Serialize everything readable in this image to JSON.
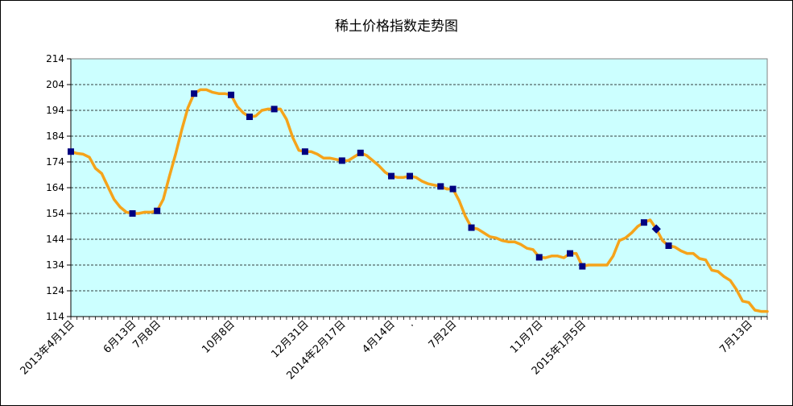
{
  "chart_data": {
    "type": "line",
    "title": "稀土价格指数走势图",
    "xlabel": "",
    "ylabel": "",
    "ylim": [
      114,
      214
    ],
    "yticks": [
      114,
      124,
      134,
      144,
      154,
      164,
      174,
      184,
      194,
      204,
      214
    ],
    "grid": true,
    "legend": "none",
    "colors": {
      "plot_bg": "#CCFFFF",
      "line": "#F5A31A",
      "marker": "#000080",
      "grid": "#000000"
    },
    "x_tick_labels": [
      {
        "i": 0,
        "label": "2013年4月1日"
      },
      {
        "i": 10,
        "label": "6月13日"
      },
      {
        "i": 14,
        "label": "7月8日"
      },
      {
        "i": 26,
        "label": "10月8日"
      },
      {
        "i": 38,
        "label": "12月31日"
      },
      {
        "i": 44,
        "label": "2014年2月17日"
      },
      {
        "i": 52,
        "label": "4月14日"
      },
      {
        "i": 55,
        "label": "."
      },
      {
        "i": 62,
        "label": "7月2日"
      },
      {
        "i": 76,
        "label": "11月7日"
      },
      {
        "i": 83,
        "label": "2015年1月5日"
      },
      {
        "i": 110,
        "label": "7月13日"
      }
    ],
    "series": [
      {
        "values": [
          178,
          177.3,
          177,
          175.8,
          171.5,
          169.5,
          164.5,
          159.5,
          156.5,
          154.5,
          154,
          154,
          154.5,
          154.5,
          155,
          159.5,
          168.5,
          177,
          186.5,
          195,
          200.5,
          202,
          202,
          201,
          200.5,
          200.5,
          200,
          195.5,
          193,
          191.5,
          191.8,
          194,
          194.5,
          194.5,
          194.5,
          190.5,
          183.5,
          178.5,
          178,
          178,
          177,
          175.5,
          175.5,
          175,
          174.5,
          174.5,
          176,
          177.5,
          176.5,
          174.5,
          172.5,
          170,
          168.5,
          168,
          168,
          168.5,
          168,
          166.5,
          165.5,
          165,
          164.5,
          163.5,
          163.5,
          159,
          153,
          148.5,
          148,
          146.5,
          145,
          144.5,
          143.5,
          143,
          143,
          142,
          140.5,
          140,
          137,
          136.8,
          137.5,
          137.5,
          136.8,
          138.5,
          138.5,
          133.5,
          134,
          134,
          134,
          134,
          137.5,
          143.5,
          144.5,
          146.5,
          149,
          150.5,
          151.5,
          148,
          143.5,
          141.5,
          141,
          139.5,
          138.5,
          138.5,
          136.5,
          136,
          132,
          131.5,
          129.5,
          128,
          124.5,
          120,
          119.5,
          116.5,
          116,
          116
        ],
        "markers": [
          0,
          10,
          14,
          20,
          26,
          29,
          33,
          38,
          44,
          47,
          52,
          55,
          60,
          62,
          65,
          76,
          81,
          83,
          93,
          95,
          97
        ]
      }
    ]
  }
}
